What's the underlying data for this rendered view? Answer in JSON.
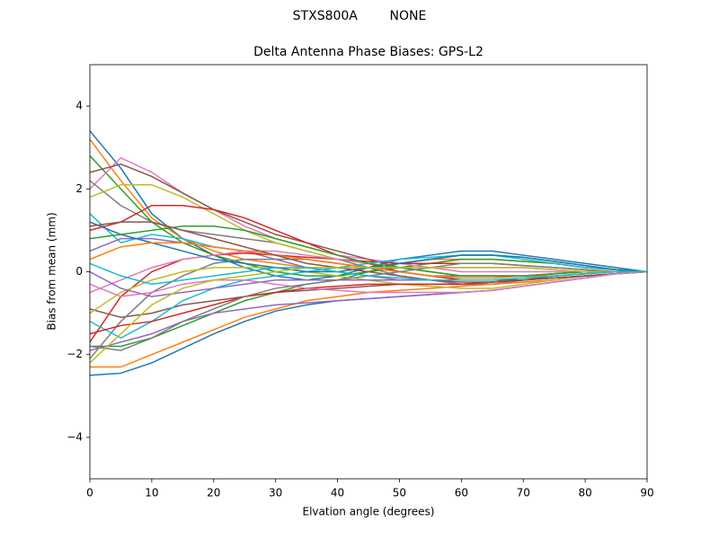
{
  "chart_data": {
    "type": "line",
    "suptitle": "STXS800A        NONE",
    "title": "Delta Antenna Phase Biases: GPS-L2",
    "xlabel": "Elvation angle (degrees)",
    "ylabel": "Bias from mean (mm)",
    "x": [
      0,
      5,
      10,
      15,
      20,
      25,
      30,
      35,
      40,
      45,
      50,
      55,
      60,
      65,
      70,
      75,
      80,
      85,
      90
    ],
    "xlim": [
      0,
      90
    ],
    "xticks": [
      0,
      10,
      20,
      30,
      40,
      50,
      60,
      70,
      80,
      90
    ],
    "ylim": [
      -5,
      5
    ],
    "yticks": [
      {
        "value": -4,
        "label": "−4"
      },
      {
        "value": -2,
        "label": "−2"
      },
      0,
      2,
      4
    ],
    "grid": false,
    "series": [
      {
        "color": "#1f77b4",
        "values": [
          3.4,
          2.5,
          1.4,
          0.8,
          0.4,
          0.1,
          -0.1,
          -0.2,
          -0.1,
          0.1,
          0.3,
          0.4,
          0.5,
          0.5,
          0.4,
          0.3,
          0.2,
          0.1,
          0
        ]
      },
      {
        "color": "#ff7f0e",
        "values": [
          3.2,
          2.2,
          1.3,
          0.8,
          0.5,
          0.3,
          0.2,
          0.1,
          0.1,
          0.1,
          0.2,
          0.3,
          0.3,
          0.3,
          0.25,
          0.2,
          0.1,
          0.05,
          0
        ]
      },
      {
        "color": "#2ca02c",
        "values": [
          2.8,
          2.0,
          1.2,
          0.7,
          0.4,
          0.2,
          0,
          -0.1,
          -0.1,
          0,
          0.1,
          0.2,
          0.3,
          0.3,
          0.25,
          0.2,
          0.1,
          0.05,
          0
        ]
      },
      {
        "color": "#e377c2",
        "values": [
          2.0,
          2.75,
          2.4,
          1.9,
          1.5,
          1.1,
          0.8,
          0.6,
          0.4,
          0.3,
          0.2,
          0.1,
          0,
          0,
          0,
          0,
          0,
          0,
          0
        ]
      },
      {
        "color": "#8c564b",
        "values": [
          2.4,
          2.6,
          2.3,
          1.9,
          1.5,
          1.2,
          0.9,
          0.7,
          0.5,
          0.3,
          0.1,
          0,
          -0.1,
          -0.1,
          -0.1,
          -0.05,
          0,
          0,
          0
        ]
      },
      {
        "color": "#7f7f7f",
        "values": [
          2.2,
          1.6,
          1.2,
          1.0,
          0.9,
          0.8,
          0.7,
          0.5,
          0.3,
          0.1,
          -0.1,
          -0.2,
          -0.3,
          -0.3,
          -0.25,
          -0.2,
          -0.1,
          -0.05,
          0
        ]
      },
      {
        "color": "#bcbd22",
        "values": [
          1.8,
          2.1,
          2.1,
          1.8,
          1.4,
          1.0,
          0.7,
          0.5,
          0.3,
          0.2,
          0.1,
          0,
          -0.1,
          -0.1,
          -0.1,
          -0.05,
          0,
          0,
          0
        ]
      },
      {
        "color": "#17becf",
        "values": [
          1.4,
          0.7,
          0.9,
          0.8,
          0.6,
          0.5,
          0.4,
          0.3,
          0.2,
          0.1,
          0,
          -0.1,
          -0.2,
          -0.2,
          -0.15,
          -0.1,
          -0.05,
          0,
          0
        ]
      },
      {
        "color": "#d62728",
        "values": [
          1.0,
          1.2,
          1.6,
          1.6,
          1.5,
          1.3,
          1.0,
          0.7,
          0.4,
          0.2,
          0,
          -0.1,
          -0.2,
          -0.2,
          -0.2,
          -0.1,
          -0.05,
          0,
          0
        ]
      },
      {
        "color": "#9467bd",
        "values": [
          0.5,
          0.8,
          0.8,
          0.7,
          0.6,
          0.5,
          0.3,
          0.1,
          0,
          -0.1,
          -0.2,
          -0.2,
          -0.3,
          -0.3,
          -0.2,
          -0.15,
          -0.1,
          -0.05,
          0
        ]
      },
      {
        "color": "#1f77b4",
        "values": [
          -2.5,
          -2.45,
          -2.2,
          -1.85,
          -1.5,
          -1.2,
          -0.95,
          -0.8,
          -0.7,
          -0.65,
          -0.6,
          -0.55,
          -0.5,
          -0.45,
          -0.35,
          -0.25,
          -0.15,
          -0.05,
          0
        ]
      },
      {
        "color": "#ff7f0e",
        "values": [
          -2.3,
          -2.3,
          -2.0,
          -1.7,
          -1.4,
          -1.1,
          -0.9,
          -0.7,
          -0.6,
          -0.5,
          -0.45,
          -0.4,
          -0.35,
          -0.3,
          -0.25,
          -0.2,
          -0.1,
          -0.05,
          0
        ]
      },
      {
        "color": "#2ca02c",
        "values": [
          -1.8,
          -1.8,
          -1.6,
          -1.3,
          -1.0,
          -0.7,
          -0.5,
          -0.3,
          -0.2,
          0,
          0.2,
          0.3,
          0.4,
          0.4,
          0.35,
          0.25,
          0.15,
          0.05,
          0
        ]
      },
      {
        "color": "#d62728",
        "values": [
          -1.7,
          -0.6,
          0,
          0.3,
          0.4,
          0.45,
          0.4,
          0.35,
          0.3,
          0.25,
          0.2,
          0.2,
          0.2,
          0.2,
          0.15,
          0.1,
          0.05,
          0,
          0
        ]
      },
      {
        "color": "#9467bd",
        "values": [
          -1.9,
          -1.7,
          -1.5,
          -1.2,
          -1.0,
          -0.9,
          -0.8,
          -0.75,
          -0.7,
          -0.65,
          -0.6,
          -0.55,
          -0.5,
          -0.45,
          -0.35,
          -0.25,
          -0.15,
          -0.05,
          0
        ]
      },
      {
        "color": "#8c564b",
        "values": [
          -0.9,
          -1.1,
          -1.0,
          -0.8,
          -0.7,
          -0.6,
          -0.5,
          -0.45,
          -0.4,
          -0.35,
          -0.3,
          -0.3,
          -0.3,
          -0.25,
          -0.2,
          -0.15,
          -0.1,
          -0.05,
          0
        ]
      },
      {
        "color": "#e377c2",
        "values": [
          -0.5,
          -0.2,
          0.1,
          0.3,
          0.4,
          0.5,
          0.5,
          0.4,
          0.3,
          0.2,
          0.1,
          0.1,
          0.1,
          0.1,
          0.1,
          0.05,
          0,
          0,
          0
        ]
      },
      {
        "color": "#7f7f7f",
        "values": [
          -2.1,
          -1.2,
          -0.5,
          -0.1,
          0.2,
          0.3,
          0.3,
          0.3,
          0.2,
          0.1,
          0,
          -0.1,
          -0.1,
          -0.1,
          -0.1,
          -0.05,
          0,
          0,
          0
        ]
      },
      {
        "color": "#bcbd22",
        "values": [
          -1.0,
          -0.5,
          -0.2,
          0,
          0.1,
          0.1,
          0.1,
          0,
          -0.1,
          -0.2,
          -0.3,
          -0.35,
          -0.4,
          -0.4,
          -0.3,
          -0.2,
          -0.1,
          -0.05,
          0
        ]
      },
      {
        "color": "#17becf",
        "values": [
          -1.2,
          -1.6,
          -1.2,
          -0.7,
          -0.4,
          -0.2,
          -0.1,
          0,
          0.1,
          0.2,
          0.3,
          0.35,
          0.4,
          0.4,
          0.3,
          0.2,
          0.1,
          0.05,
          0
        ]
      },
      {
        "color": "#1f77b4",
        "values": [
          1.2,
          0.9,
          0.7,
          0.5,
          0.3,
          0.2,
          0.1,
          0,
          0,
          0.1,
          0.2,
          0.3,
          0.4,
          0.4,
          0.35,
          0.25,
          0.15,
          0.05,
          0
        ]
      },
      {
        "color": "#ff7f0e",
        "values": [
          0.3,
          0.6,
          0.7,
          0.7,
          0.6,
          0.5,
          0.4,
          0.3,
          0.2,
          0.1,
          0,
          -0.1,
          -0.15,
          -0.15,
          -0.1,
          -0.1,
          -0.05,
          0,
          0
        ]
      },
      {
        "color": "#2ca02c",
        "values": [
          0.8,
          0.9,
          1.0,
          1.1,
          1.1,
          1.0,
          0.8,
          0.6,
          0.4,
          0.2,
          0.1,
          0,
          -0.1,
          -0.1,
          -0.1,
          -0.05,
          0,
          0,
          0
        ]
      },
      {
        "color": "#d62728",
        "values": [
          -1.5,
          -1.3,
          -1.2,
          -1.0,
          -0.8,
          -0.6,
          -0.5,
          -0.4,
          -0.35,
          -0.3,
          -0.3,
          -0.3,
          -0.3,
          -0.25,
          -0.2,
          -0.15,
          -0.1,
          -0.05,
          0
        ]
      },
      {
        "color": "#9467bd",
        "values": [
          0.0,
          -0.4,
          -0.6,
          -0.5,
          -0.4,
          -0.3,
          -0.2,
          -0.2,
          -0.2,
          -0.2,
          -0.2,
          -0.2,
          -0.2,
          -0.2,
          -0.15,
          -0.1,
          -0.05,
          0,
          0
        ]
      },
      {
        "color": "#8c564b",
        "values": [
          1.1,
          1.2,
          1.2,
          1.0,
          0.8,
          0.6,
          0.4,
          0.2,
          0.1,
          0,
          -0.1,
          -0.2,
          -0.25,
          -0.25,
          -0.2,
          -0.15,
          -0.1,
          -0.05,
          0
        ]
      },
      {
        "color": "#e377c2",
        "values": [
          -0.3,
          -0.6,
          -0.5,
          -0.3,
          -0.2,
          -0.2,
          -0.3,
          -0.4,
          -0.45,
          -0.5,
          -0.5,
          -0.5,
          -0.5,
          -0.45,
          -0.35,
          -0.25,
          -0.15,
          -0.05,
          0
        ]
      },
      {
        "color": "#7f7f7f",
        "values": [
          -1.8,
          -1.9,
          -1.6,
          -1.2,
          -0.9,
          -0.6,
          -0.4,
          -0.3,
          -0.2,
          -0.1,
          0,
          0.1,
          0.2,
          0.2,
          0.15,
          0.1,
          0.05,
          0,
          0
        ]
      },
      {
        "color": "#bcbd22",
        "values": [
          -2.2,
          -1.5,
          -0.8,
          -0.4,
          -0.2,
          -0.1,
          0,
          0.1,
          0.1,
          0.1,
          0.1,
          0.1,
          0.1,
          0.1,
          0.1,
          0.05,
          0,
          0,
          0
        ]
      },
      {
        "color": "#17becf",
        "values": [
          0.2,
          -0.1,
          -0.3,
          -0.2,
          -0.1,
          0,
          0.1,
          0.1,
          0,
          -0.1,
          -0.15,
          -0.2,
          -0.2,
          -0.2,
          -0.15,
          -0.1,
          -0.05,
          0,
          0
        ]
      }
    ]
  }
}
